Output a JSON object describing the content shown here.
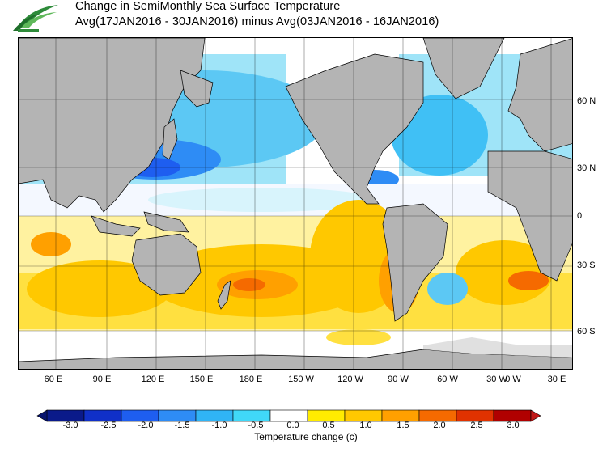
{
  "title_line1": "Change in SemiMonthly Sea Surface Temperature",
  "title_line2": "Avg(17JAN2016 - 30JAN2016) minus Avg(03JAN2016 - 16JAN2016)",
  "map": {
    "latitude_labels": [
      "60 N",
      "30 N",
      "0",
      "30 S",
      "60 S"
    ],
    "longitude_labels": [
      "60 E",
      "90 E",
      "120 E",
      "150 E",
      "180 E",
      "150 W",
      "120 W",
      "90 W",
      "60 W",
      "30 W",
      "0 W",
      "30 E"
    ]
  },
  "colorbar": {
    "title": "Temperature change  (c)",
    "tick_labels": [
      "-3.0",
      "-2.5",
      "-2.0",
      "-1.5",
      "-1.0",
      "-0.5",
      "0.0",
      "0.5",
      "1.0",
      "1.5",
      "2.0",
      "2.5",
      "3.0"
    ],
    "colors": [
      "#0a1a8a",
      "#1030c8",
      "#1e5ef0",
      "#2e8cf5",
      "#30b4f5",
      "#40d8f8",
      "#ffffff",
      "#ffec00",
      "#ffc800",
      "#ffa000",
      "#f56a00",
      "#e03200",
      "#b00000"
    ],
    "under_color": "#08146e",
    "over_color": "#c01818"
  },
  "colors": {
    "land": "#b4b4b4",
    "sea_ice": "#e0e0e0",
    "ocean_no_change": "#ffffff",
    "logo_green": "#2e8b3a"
  }
}
